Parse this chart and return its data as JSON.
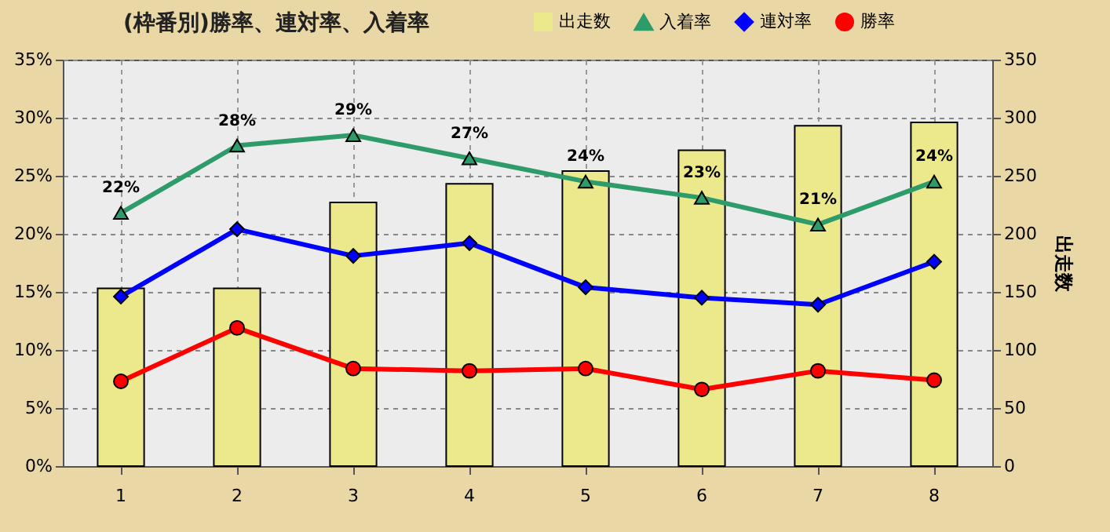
{
  "chart_data": {
    "type": "line",
    "title": "(枠番別)勝率、連対率、入着率",
    "y2label": "出走数",
    "categories": [
      "1",
      "2",
      "3",
      "4",
      "5",
      "6",
      "7",
      "8"
    ],
    "series": [
      {
        "name": "出走数",
        "type": "bar",
        "axis": "y2",
        "color": "#ece98c",
        "values": [
          153,
          153,
          227,
          243,
          254,
          272,
          293,
          296
        ]
      },
      {
        "name": "入着率",
        "color": "#2e9b6a",
        "marker": "triangle",
        "values": [
          21.8,
          27.6,
          28.5,
          26.5,
          24.5,
          23.1,
          20.8,
          24.5
        ],
        "value_labels": [
          "22%",
          "28%",
          "29%",
          "27%",
          "24%",
          "23%",
          "21%",
          "24%"
        ]
      },
      {
        "name": "連対率",
        "color": "#0000ff",
        "marker": "diamond",
        "values": [
          14.6,
          20.4,
          18.1,
          19.2,
          15.4,
          14.5,
          13.9,
          17.6
        ]
      },
      {
        "name": "勝率",
        "color": "#ff0000",
        "marker": "circle",
        "values": [
          7.3,
          11.9,
          8.4,
          8.2,
          8.4,
          6.6,
          8.2,
          7.4
        ]
      }
    ],
    "ylim": [
      0,
      35
    ],
    "yticks": [
      {
        "value": 0,
        "label": "0%"
      },
      {
        "value": 5,
        "label": "5%"
      },
      {
        "value": 10,
        "label": "10%"
      },
      {
        "value": 15,
        "label": "15%"
      },
      {
        "value": 20,
        "label": "20%"
      },
      {
        "value": 25,
        "label": "25%"
      },
      {
        "value": 30,
        "label": "30%"
      },
      {
        "value": 35,
        "label": "35%"
      }
    ],
    "y2lim": [
      0,
      350
    ],
    "y2ticks": [
      0,
      50,
      100,
      150,
      200,
      250,
      300,
      350
    ],
    "grid": true,
    "legend": "top right"
  }
}
